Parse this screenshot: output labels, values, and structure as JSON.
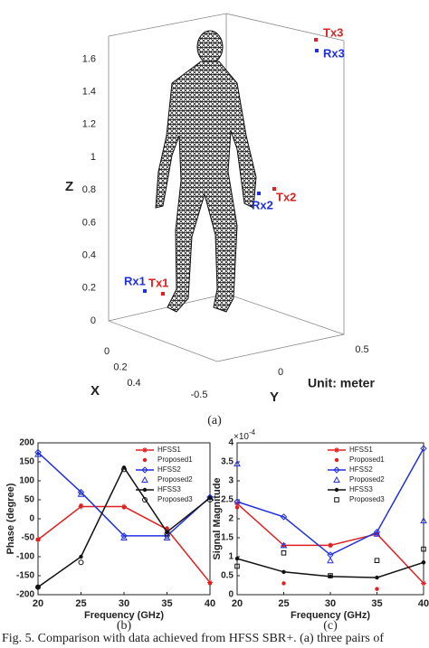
{
  "figure_a": {
    "axis_labels": {
      "z": "Z",
      "x": "X",
      "y": "Y"
    },
    "unit": "Unit: meter",
    "zticks": [
      0,
      0.2,
      0.4,
      0.6,
      0.8,
      1,
      1.2,
      1.4,
      1.6
    ],
    "xticks": [
      0,
      0.2,
      0.4
    ],
    "yticks": [
      -0.5,
      0,
      0.5
    ],
    "points": [
      "Tx1",
      "Rx1",
      "Tx2",
      "Rx2",
      "Tx3",
      "Rx3"
    ],
    "caption": "(a)"
  },
  "chart_data": [
    {
      "type": "line",
      "caption": "(b)",
      "xlabel": "Frequency (GHz)",
      "ylabel": "Phase (degree)",
      "x": [
        20,
        25,
        30,
        35,
        40
      ],
      "xlim": [
        20,
        40
      ],
      "xticks": [
        20,
        25,
        30,
        35,
        40
      ],
      "ylim": [
        -200,
        200
      ],
      "yticks": [
        -200,
        -150,
        -100,
        -50,
        0,
        50,
        100,
        150,
        200
      ],
      "series": [
        {
          "name": "HFSS1",
          "color": "#e02020",
          "line": true,
          "marker": "star",
          "values": [
            -55,
            32,
            32,
            -28,
            -168
          ]
        },
        {
          "name": "Proposed1",
          "color": "#e02020",
          "line": false,
          "marker": "dot",
          "values": [
            -55,
            35,
            30,
            -25,
            -170
          ]
        },
        {
          "name": "HFSS2",
          "color": "#2030e0",
          "line": true,
          "marker": "diamond",
          "values": [
            175,
            70,
            -45,
            -45,
            57
          ]
        },
        {
          "name": "Proposed2",
          "color": "#2030e0",
          "line": false,
          "marker": "triangle",
          "values": [
            170,
            65,
            -50,
            -50,
            57
          ]
        },
        {
          "name": "HFSS3",
          "color": "#111111",
          "line": true,
          "marker": "dot",
          "values": [
            -180,
            -100,
            135,
            -35,
            55
          ]
        },
        {
          "name": "Proposed3",
          "color": "#111111",
          "line": false,
          "marker": "circle",
          "values": [
            -180,
            -115,
            130,
            -40,
            50
          ]
        }
      ]
    },
    {
      "type": "line",
      "caption": "(c)",
      "xlabel": "Frequency (GHz)",
      "ylabel": "Signal Magnitude",
      "multiplier": {
        "base": "×10",
        "exponent": "-4"
      },
      "x": [
        20,
        25,
        30,
        35,
        40
      ],
      "xlim": [
        20,
        40
      ],
      "xticks": [
        20,
        25,
        30,
        35,
        40
      ],
      "ylim": [
        0,
        4
      ],
      "yticks": [
        0,
        0.5,
        1,
        1.5,
        2,
        2.5,
        3,
        3.5,
        4
      ],
      "series": [
        {
          "name": "HFSS1",
          "color": "#e02020",
          "line": true,
          "marker": "star",
          "values": [
            2.4,
            1.3,
            1.3,
            1.6,
            0.3
          ]
        },
        {
          "name": "Proposed1",
          "color": "#e02020",
          "line": false,
          "marker": "dot",
          "values": [
            2.3,
            0.3,
            1.3,
            0.15,
            0.85
          ]
        },
        {
          "name": "HFSS2",
          "color": "#2030e0",
          "line": true,
          "marker": "diamond",
          "values": [
            2.45,
            2.05,
            1.05,
            1.65,
            3.85
          ]
        },
        {
          "name": "Proposed2",
          "color": "#2030e0",
          "line": false,
          "marker": "triangle",
          "values": [
            3.45,
            1.3,
            0.9,
            1.6,
            1.95
          ]
        },
        {
          "name": "HFSS3",
          "color": "#111111",
          "line": true,
          "marker": "dot",
          "values": [
            0.95,
            0.6,
            0.48,
            0.45,
            0.85
          ]
        },
        {
          "name": "Proposed3",
          "color": "#111111",
          "line": false,
          "marker": "square",
          "values": [
            0.75,
            1.1,
            0.5,
            0.9,
            1.2
          ]
        }
      ]
    }
  ],
  "caption": "Fig. 5. Comparison with data achieved from HFSS SBR+. (a) three pairs of"
}
